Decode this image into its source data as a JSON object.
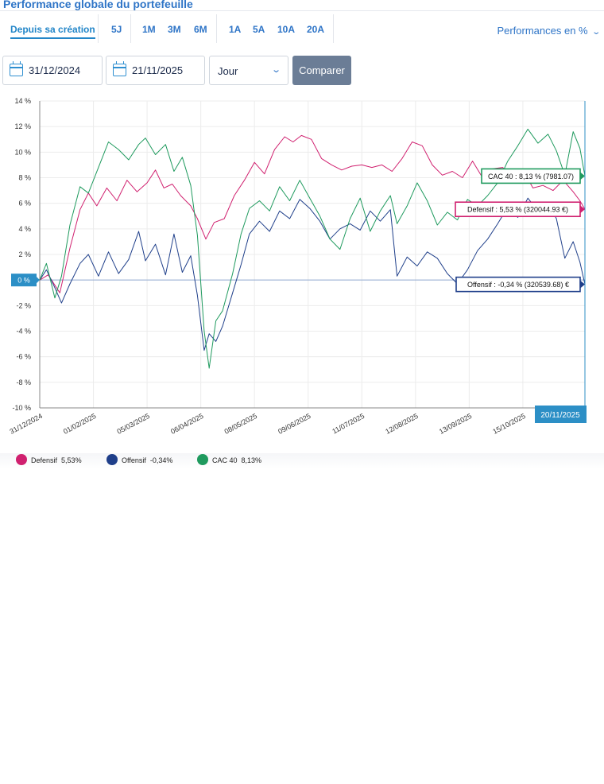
{
  "page": {
    "title": "Performance globale du portefeuille"
  },
  "periods": [
    {
      "label": "Depuis sa création",
      "active": true
    },
    {
      "label": "5J"
    },
    {
      "label": "1M"
    },
    {
      "label": "3M"
    },
    {
      "label": "6M"
    },
    {
      "label": "1A"
    },
    {
      "label": "5A"
    },
    {
      "label": "10A"
    },
    {
      "label": "20A"
    }
  ],
  "display_mode": {
    "label": "Performances en %",
    "icon": "chevron-down-icon"
  },
  "filters": {
    "start_date": "31/12/2024",
    "end_date": "21/11/2025",
    "granularity": "Jour",
    "compare_label": "Comparer",
    "calendar_icon": "calendar-icon"
  },
  "chart_data": {
    "type": "line",
    "ylim": [
      -10,
      14
    ],
    "y_ticks": [
      "14 %",
      "12 %",
      "10 %",
      "8 %",
      "6 %",
      "4 %",
      "2 %",
      "0 %",
      "-2 %",
      "-4 %",
      "-6 %",
      "-8 %",
      "-10 %"
    ],
    "y_tick_values": [
      14,
      12,
      10,
      8,
      6,
      4,
      2,
      0,
      -2,
      -4,
      -6,
      -8,
      -10
    ],
    "x_ticks": [
      "31/12/2024",
      "01/02/2025",
      "05/03/2025",
      "06/04/2025",
      "08/05/2025",
      "09/06/2025",
      "11/07/2025",
      "12/08/2025",
      "13/09/2025",
      "15/10/2025"
    ],
    "zero_label": "0 %",
    "cursor_date": "20/11/2025",
    "grid": true,
    "legend_position": "bottom-left",
    "series": [
      {
        "name": "Defensif",
        "color": "#d0206f",
        "final_label": "Defensif : 5,53 % (320044.93 €)",
        "legend_value": "5,53%",
        "points": [
          [
            "2024-12-31",
            0
          ],
          [
            "2025-01-05",
            0.4
          ],
          [
            "2025-01-12",
            -1.0
          ],
          [
            "2025-01-18",
            2.5
          ],
          [
            "2025-01-24",
            5.5
          ],
          [
            "2025-01-29",
            6.8
          ],
          [
            "2025-02-03",
            5.8
          ],
          [
            "2025-02-09",
            7.2
          ],
          [
            "2025-02-15",
            6.2
          ],
          [
            "2025-02-21",
            7.8
          ],
          [
            "2025-02-27",
            6.9
          ],
          [
            "2025-03-05",
            7.6
          ],
          [
            "2025-03-10",
            8.6
          ],
          [
            "2025-03-15",
            7.2
          ],
          [
            "2025-03-20",
            7.5
          ],
          [
            "2025-03-25",
            6.6
          ],
          [
            "2025-03-31",
            5.8
          ],
          [
            "2025-04-04",
            4.8
          ],
          [
            "2025-04-09",
            3.2
          ],
          [
            "2025-04-14",
            4.5
          ],
          [
            "2025-04-20",
            4.8
          ],
          [
            "2025-04-26",
            6.6
          ],
          [
            "2025-05-02",
            7.8
          ],
          [
            "2025-05-08",
            9.2
          ],
          [
            "2025-05-14",
            8.3
          ],
          [
            "2025-05-20",
            10.2
          ],
          [
            "2025-05-26",
            11.2
          ],
          [
            "2025-05-31",
            10.8
          ],
          [
            "2025-06-05",
            11.3
          ],
          [
            "2025-06-11",
            11.0
          ],
          [
            "2025-06-17",
            9.5
          ],
          [
            "2025-06-23",
            9.0
          ],
          [
            "2025-06-29",
            8.6
          ],
          [
            "2025-07-05",
            8.9
          ],
          [
            "2025-07-11",
            9.0
          ],
          [
            "2025-07-17",
            8.8
          ],
          [
            "2025-07-23",
            9.0
          ],
          [
            "2025-07-29",
            8.5
          ],
          [
            "2025-08-04",
            9.5
          ],
          [
            "2025-08-10",
            10.8
          ],
          [
            "2025-08-16",
            10.5
          ],
          [
            "2025-08-22",
            9.0
          ],
          [
            "2025-08-28",
            8.2
          ],
          [
            "2025-09-03",
            8.5
          ],
          [
            "2025-09-09",
            8.0
          ],
          [
            "2025-09-15",
            9.3
          ],
          [
            "2025-09-21",
            8.0
          ],
          [
            "2025-09-27",
            8.7
          ],
          [
            "2025-10-03",
            8.8
          ],
          [
            "2025-10-09",
            7.9
          ],
          [
            "2025-10-15",
            8.6
          ],
          [
            "2025-10-21",
            7.2
          ],
          [
            "2025-10-27",
            7.4
          ],
          [
            "2025-11-02",
            7.0
          ],
          [
            "2025-11-08",
            7.8
          ],
          [
            "2025-11-14",
            6.9
          ],
          [
            "2025-11-18",
            6.2
          ],
          [
            "2025-11-21",
            5.53
          ]
        ]
      },
      {
        "name": "Offensif",
        "color": "#1f3f8a",
        "final_label": "Offensif : -0,34 % (320539.68) €",
        "legend_value": "-0,34%",
        "points": [
          [
            "2024-12-31",
            0
          ],
          [
            "2025-01-04",
            0.8
          ],
          [
            "2025-01-09",
            -0.6
          ],
          [
            "2025-01-13",
            -1.8
          ],
          [
            "2025-01-18",
            -0.3
          ],
          [
            "2025-01-24",
            1.3
          ],
          [
            "2025-01-29",
            2.0
          ],
          [
            "2025-02-04",
            0.3
          ],
          [
            "2025-02-10",
            2.2
          ],
          [
            "2025-02-16",
            0.5
          ],
          [
            "2025-02-22",
            1.6
          ],
          [
            "2025-02-28",
            3.8
          ],
          [
            "2025-03-04",
            1.5
          ],
          [
            "2025-03-10",
            2.8
          ],
          [
            "2025-03-16",
            0.4
          ],
          [
            "2025-03-21",
            3.6
          ],
          [
            "2025-03-26",
            0.6
          ],
          [
            "2025-03-31",
            1.9
          ],
          [
            "2025-04-04",
            -1.2
          ],
          [
            "2025-04-08",
            -5.5
          ],
          [
            "2025-04-11",
            -4.2
          ],
          [
            "2025-04-15",
            -4.8
          ],
          [
            "2025-04-19",
            -3.6
          ],
          [
            "2025-04-25",
            -1.0
          ],
          [
            "2025-04-30",
            1.2
          ],
          [
            "2025-05-05",
            3.6
          ],
          [
            "2025-05-11",
            4.6
          ],
          [
            "2025-05-17",
            3.8
          ],
          [
            "2025-05-23",
            5.4
          ],
          [
            "2025-05-29",
            4.8
          ],
          [
            "2025-06-04",
            6.3
          ],
          [
            "2025-06-10",
            5.6
          ],
          [
            "2025-06-16",
            4.6
          ],
          [
            "2025-06-22",
            3.2
          ],
          [
            "2025-06-28",
            4.0
          ],
          [
            "2025-07-04",
            4.4
          ],
          [
            "2025-07-10",
            3.9
          ],
          [
            "2025-07-16",
            5.4
          ],
          [
            "2025-07-22",
            4.6
          ],
          [
            "2025-07-28",
            5.5
          ],
          [
            "2025-08-01",
            0.3
          ],
          [
            "2025-08-07",
            1.8
          ],
          [
            "2025-08-13",
            1.1
          ],
          [
            "2025-08-19",
            2.2
          ],
          [
            "2025-08-25",
            1.7
          ],
          [
            "2025-08-31",
            0.5
          ],
          [
            "2025-09-06",
            -0.3
          ],
          [
            "2025-09-12",
            0.8
          ],
          [
            "2025-09-18",
            2.3
          ],
          [
            "2025-09-24",
            3.2
          ],
          [
            "2025-09-30",
            4.4
          ],
          [
            "2025-10-06",
            5.7
          ],
          [
            "2025-10-12",
            4.9
          ],
          [
            "2025-10-18",
            6.4
          ],
          [
            "2025-10-24",
            5.4
          ],
          [
            "2025-10-30",
            6.1
          ],
          [
            "2025-11-04",
            4.8
          ],
          [
            "2025-11-09",
            1.7
          ],
          [
            "2025-11-14",
            3.0
          ],
          [
            "2025-11-18",
            1.4
          ],
          [
            "2025-11-21",
            -0.34
          ]
        ]
      },
      {
        "name": "CAC 40",
        "color": "#1f9a5e",
        "final_label": "CAC 40 : 8,13 % (7981.07)",
        "legend_value": "8,13%",
        "points": [
          [
            "2024-12-31",
            0
          ],
          [
            "2025-01-04",
            1.3
          ],
          [
            "2025-01-09",
            -1.4
          ],
          [
            "2025-01-13",
            0.3
          ],
          [
            "2025-01-18",
            4.3
          ],
          [
            "2025-01-24",
            7.3
          ],
          [
            "2025-01-29",
            6.8
          ],
          [
            "2025-02-04",
            8.8
          ],
          [
            "2025-02-10",
            10.8
          ],
          [
            "2025-02-16",
            10.2
          ],
          [
            "2025-02-22",
            9.4
          ],
          [
            "2025-02-28",
            10.6
          ],
          [
            "2025-03-04",
            11.1
          ],
          [
            "2025-03-10",
            9.8
          ],
          [
            "2025-03-16",
            10.6
          ],
          [
            "2025-03-21",
            8.5
          ],
          [
            "2025-03-26",
            9.6
          ],
          [
            "2025-03-31",
            7.4
          ],
          [
            "2025-04-04",
            3.5
          ],
          [
            "2025-04-08",
            -4.0
          ],
          [
            "2025-04-11",
            -6.9
          ],
          [
            "2025-04-15",
            -3.2
          ],
          [
            "2025-04-19",
            -2.4
          ],
          [
            "2025-04-25",
            0.5
          ],
          [
            "2025-04-30",
            3.6
          ],
          [
            "2025-05-05",
            5.6
          ],
          [
            "2025-05-11",
            6.2
          ],
          [
            "2025-05-17",
            5.4
          ],
          [
            "2025-05-23",
            7.3
          ],
          [
            "2025-05-29",
            6.2
          ],
          [
            "2025-06-04",
            7.8
          ],
          [
            "2025-06-10",
            6.4
          ],
          [
            "2025-06-16",
            5.0
          ],
          [
            "2025-06-22",
            3.2
          ],
          [
            "2025-06-28",
            2.4
          ],
          [
            "2025-07-04",
            4.8
          ],
          [
            "2025-07-10",
            6.4
          ],
          [
            "2025-07-16",
            3.8
          ],
          [
            "2025-07-22",
            5.4
          ],
          [
            "2025-07-28",
            6.6
          ],
          [
            "2025-08-01",
            4.4
          ],
          [
            "2025-08-07",
            5.8
          ],
          [
            "2025-08-13",
            7.6
          ],
          [
            "2025-08-19",
            6.2
          ],
          [
            "2025-08-25",
            4.3
          ],
          [
            "2025-08-31",
            5.3
          ],
          [
            "2025-09-06",
            4.7
          ],
          [
            "2025-09-12",
            6.3
          ],
          [
            "2025-09-18",
            5.8
          ],
          [
            "2025-09-24",
            6.6
          ],
          [
            "2025-09-30",
            7.6
          ],
          [
            "2025-10-06",
            9.3
          ],
          [
            "2025-10-12",
            10.5
          ],
          [
            "2025-10-18",
            11.8
          ],
          [
            "2025-10-24",
            10.7
          ],
          [
            "2025-10-30",
            11.4
          ],
          [
            "2025-11-04",
            10.1
          ],
          [
            "2025-11-09",
            8.2
          ],
          [
            "2025-11-14",
            11.6
          ],
          [
            "2025-11-18",
            10.3
          ],
          [
            "2025-11-21",
            8.13
          ]
        ]
      }
    ]
  }
}
